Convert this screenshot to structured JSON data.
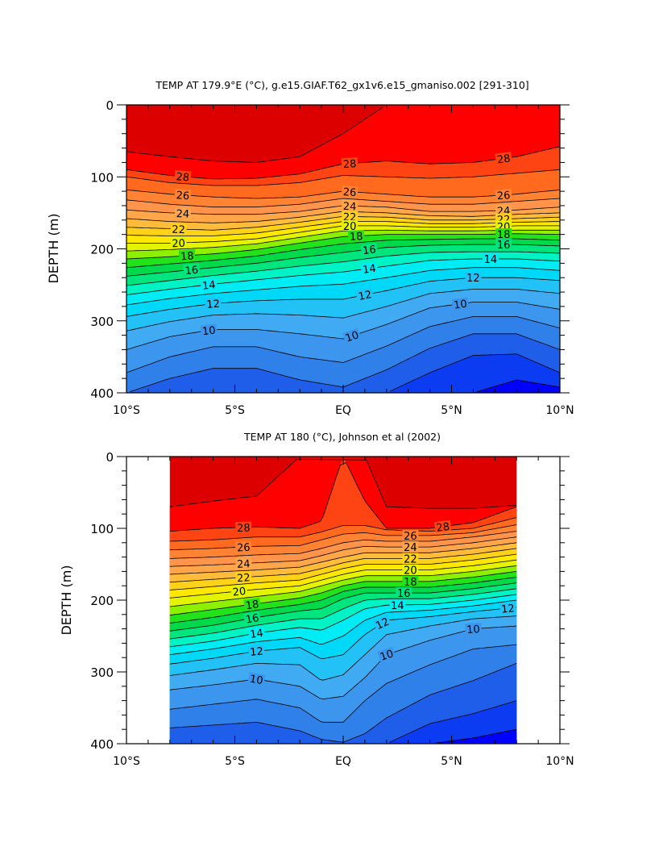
{
  "chart_data": [
    {
      "type": "contour",
      "title": "TEMP AT 179.9°E (°C), g.e15.GIAF.T62_gx1v6.e15_gmaniso.002 [291-310]",
      "ylabel": "DEPTH (m)",
      "x_ticklabels": [
        "10°S",
        "5°S",
        "EQ",
        "5°N",
        "10°N"
      ],
      "x_tickvalues": [
        -10,
        -5,
        0,
        5,
        10
      ],
      "y_ticklabels": [
        "0",
        "100",
        "200",
        "300",
        "400"
      ],
      "y_tickvalues": [
        0,
        100,
        200,
        300,
        400
      ],
      "xlim": [
        -10,
        10
      ],
      "ylim": [
        400,
        0
      ],
      "y_inverted": true,
      "contour_interval": 1,
      "contour_labels": [
        "28",
        "28",
        "28",
        "26",
        "26",
        "26",
        "24",
        "24",
        "24",
        "22",
        "22",
        "22",
        "20",
        "20",
        "20",
        "18",
        "18",
        "18",
        "16",
        "16",
        "16",
        "14",
        "14",
        "14",
        "12",
        "12",
        "12",
        "10",
        "10",
        "10"
      ],
      "depths_of_isotherms": {
        "x": [
          -10,
          -8,
          -6,
          -4,
          -2,
          0,
          2,
          4,
          6,
          8,
          10
        ],
        "levels": [
          {
            "t": 29,
            "y": [
              65,
              72,
              78,
              80,
              72,
              40,
              0,
              0,
              0,
              0,
              0
            ]
          },
          {
            "t": 28,
            "y": [
              90,
              98,
              103,
              102,
              96,
              82,
              78,
              82,
              80,
              72,
              58
            ]
          },
          {
            "t": 27,
            "y": [
              100,
              108,
              112,
              112,
              108,
              98,
              100,
              102,
              100,
              95,
              90
            ]
          },
          {
            "t": 26,
            "y": [
              118,
              124,
              128,
              130,
              128,
              120,
              124,
              128,
              128,
              124,
              118
            ]
          },
          {
            "t": 25,
            "y": [
              132,
              138,
              142,
              142,
              138,
              130,
              134,
              138,
              138,
              134,
              130
            ]
          },
          {
            "t": 24,
            "y": [
              146,
              150,
              152,
              152,
              148,
              140,
              142,
              148,
              148,
              146,
              142
            ]
          },
          {
            "t": 23,
            "y": [
              158,
              162,
              164,
              162,
              156,
              148,
              150,
              154,
              155,
              152,
              150
            ]
          },
          {
            "t": 22,
            "y": [
              170,
              172,
              174,
              170,
              163,
              155,
              156,
              160,
              160,
              158,
              156
            ]
          },
          {
            "t": 21,
            "y": [
              181,
              182,
              182,
              178,
              170,
              162,
              162,
              165,
              165,
              163,
              162
            ]
          },
          {
            "t": 20,
            "y": [
              192,
              192,
              190,
              186,
              177,
              168,
              168,
              170,
              170,
              168,
              168
            ]
          },
          {
            "t": 19,
            "y": [
              203,
              201,
              198,
              193,
              184,
              175,
              174,
              175,
              175,
              174,
              174
            ]
          },
          {
            "t": 18,
            "y": [
              214,
              211,
              207,
              201,
              192,
              183,
              180,
              180,
              180,
              179,
              180
            ]
          },
          {
            "t": 17,
            "y": [
              226,
              221,
              216,
              210,
              201,
              193,
              188,
              187,
              186,
              186,
              188
            ]
          },
          {
            "t": 16,
            "y": [
              238,
              232,
              226,
              220,
              212,
              205,
              198,
              195,
              194,
              194,
              196
            ]
          },
          {
            "t": 15,
            "y": [
              251,
              244,
              237,
              231,
              224,
              218,
              210,
              205,
              204,
              204,
              206
            ]
          },
          {
            "t": 14,
            "y": [
              264,
              256,
              249,
              243,
              237,
              232,
              224,
              216,
              214,
              214,
              217
            ]
          },
          {
            "t": 13,
            "y": [
              278,
              269,
              262,
              257,
              252,
              249,
              240,
              230,
              226,
              226,
              230
            ]
          },
          {
            "t": 12,
            "y": [
              294,
              284,
              276,
              272,
              270,
              270,
              258,
              245,
              240,
              240,
              244
            ]
          },
          {
            "t": 11,
            "y": [
              314,
              301,
              292,
              290,
              292,
              296,
              280,
              262,
              256,
              256,
              262
            ]
          },
          {
            "t": 10,
            "y": [
              340,
              322,
              312,
              312,
              318,
              325,
              305,
              282,
              274,
              274,
              284
            ]
          },
          {
            "t": 9,
            "y": [
              372,
              350,
              336,
              336,
              350,
              358,
              335,
              308,
              294,
              294,
              310
            ]
          },
          {
            "t": 8,
            "y": [
              400,
              380,
              366,
              366,
              382,
              392,
              368,
              338,
              318,
              318,
              340
            ]
          },
          {
            "t": 7,
            "y": [
              400,
              400,
              400,
              400,
              400,
              400,
              400,
              372,
              348,
              346,
              372
            ]
          },
          {
            "t": 6,
            "y": [
              400,
              400,
              400,
              400,
              400,
              400,
              400,
              400,
              400,
              382,
              392
            ]
          }
        ]
      }
    },
    {
      "type": "contour",
      "title": "TEMP AT 180 (°C), Johnson et al (2002)",
      "ylabel": "DEPTH (m)",
      "x_ticklabels": [
        "10°S",
        "5°S",
        "EQ",
        "5°N",
        "10°N"
      ],
      "x_tickvalues": [
        -10,
        -5,
        0,
        5,
        10
      ],
      "y_ticklabels": [
        "0",
        "100",
        "200",
        "300",
        "400"
      ],
      "y_tickvalues": [
        0,
        100,
        200,
        300,
        400
      ],
      "xlim": [
        -10,
        10
      ],
      "ylim": [
        400,
        0
      ],
      "y_inverted": true,
      "data_x_range": [
        -8,
        8
      ],
      "contour_interval": 1,
      "contour_labels": [
        "28",
        "28",
        "26",
        "26",
        "24",
        "24",
        "22",
        "22",
        "20",
        "20",
        "18",
        "18",
        "16",
        "16",
        "14",
        "14",
        "12",
        "12",
        "12",
        "10",
        "10",
        "10"
      ],
      "depths_of_isotherms": {
        "x": [
          -8,
          -6,
          -4,
          -2,
          -1,
          0,
          1,
          2,
          4,
          6,
          8
        ],
        "levels": [
          {
            "t": 29,
            "y": [
              70,
              62,
              55,
              0,
              0,
              0,
              0,
              70,
              72,
              72,
              68
            ]
          },
          {
            "t": 28,
            "y": [
              104,
              100,
              98,
              100,
              90,
              0,
              62,
              100,
              100,
              92,
              70
            ]
          },
          {
            "t": 27,
            "y": [
              118,
              116,
              112,
              112,
              105,
              96,
              96,
              102,
              104,
              100,
              85
            ]
          },
          {
            "t": 26,
            "y": [
              130,
              128,
              125,
              124,
              116,
              108,
              106,
              110,
              110,
              106,
              95
            ]
          },
          {
            "t": 25,
            "y": [
              142,
              140,
              137,
              135,
              128,
              120,
              116,
              118,
              118,
              112,
              104
            ]
          },
          {
            "t": 24,
            "y": [
              153,
              151,
              148,
              145,
              138,
              130,
              125,
              126,
              126,
              120,
              112
            ]
          },
          {
            "t": 23,
            "y": [
              164,
              161,
              158,
              154,
              147,
              140,
              134,
              134,
              134,
              128,
              120
            ]
          },
          {
            "t": 22,
            "y": [
              175,
              171,
              167,
              163,
              156,
              148,
              142,
              142,
              142,
              136,
              128
            ]
          },
          {
            "t": 21,
            "y": [
              186,
              181,
              176,
              172,
              164,
              156,
              150,
              150,
              150,
              144,
              136
            ]
          },
          {
            "t": 20,
            "y": [
              197,
              191,
              185,
              180,
              172,
              164,
              158,
              158,
              158,
              152,
              144
            ]
          },
          {
            "t": 19,
            "y": [
              209,
              202,
              195,
              188,
              180,
              172,
              166,
              166,
              166,
              160,
              152
            ]
          },
          {
            "t": 18,
            "y": [
              221,
              213,
              205,
              197,
              190,
              180,
              174,
              174,
              174,
              168,
              160
            ]
          },
          {
            "t": 17,
            "y": [
              232,
              224,
              214,
              206,
              200,
              188,
              182,
              182,
              182,
              176,
              168
            ]
          },
          {
            "t": 16,
            "y": [
              243,
              235,
              224,
              215,
              212,
              198,
              190,
              190,
              190,
              184,
              176
            ]
          },
          {
            "t": 15,
            "y": [
              254,
              246,
              235,
              226,
              226,
              212,
              200,
              198,
              198,
              192,
              184
            ]
          },
          {
            "t": 14,
            "y": [
              265,
              257,
              246,
              238,
              242,
              228,
              212,
              207,
              206,
              200,
              192
            ]
          },
          {
            "t": 13,
            "y": [
              276,
              268,
              258,
              252,
              262,
              250,
              228,
              217,
              214,
              208,
              200
            ]
          },
          {
            "t": 12,
            "y": [
              289,
              281,
              271,
              266,
              282,
              276,
              248,
              228,
              223,
              216,
              210
            ]
          },
          {
            "t": 11,
            "y": [
              305,
              297,
              288,
              290,
              312,
              304,
              276,
              248,
              236,
              226,
              222
            ]
          },
          {
            "t": 10,
            "y": [
              325,
              318,
              310,
              320,
              338,
              334,
              308,
              276,
              256,
              240,
              236
            ]
          },
          {
            "t": 9,
            "y": [
              352,
              345,
              338,
              350,
              370,
              370,
              340,
              316,
              290,
              268,
              262
            ]
          },
          {
            "t": 8,
            "y": [
              378,
              374,
              370,
              382,
              394,
              398,
              386,
              364,
              332,
              312,
              288
            ]
          },
          {
            "t": 7,
            "y": [
              400,
              400,
              400,
              400,
              400,
              400,
              400,
              400,
              372,
              358,
              340
            ]
          },
          {
            "t": 6,
            "y": [
              400,
              400,
              400,
              400,
              400,
              400,
              400,
              400,
              400,
              392,
              380
            ]
          }
        ]
      }
    }
  ],
  "colors": {
    "t5": "#6a00d6",
    "t6": "#0000ff",
    "t7": "#0b3cf2",
    "t8": "#1f5ee9",
    "t9": "#3080ea",
    "t10": "#3d96ee",
    "t11": "#40aaf2",
    "t12": "#22c2f6",
    "t13": "#00d8f8",
    "t14": "#00ecf4",
    "t15": "#00f3c4",
    "t16": "#00e57d",
    "t17": "#00d94a",
    "t18": "#22e21a",
    "t19": "#8cf000",
    "t20": "#e4f400",
    "t21": "#ffe800",
    "t22": "#ffd21a",
    "t23": "#ffbb3a",
    "t24": "#ffa64a",
    "t25": "#ff944a",
    "t26": "#ff8332",
    "t27": "#ff6a1f",
    "t28": "#ff4413",
    "t29": "#ff0000",
    "t30": "#dd0000"
  }
}
